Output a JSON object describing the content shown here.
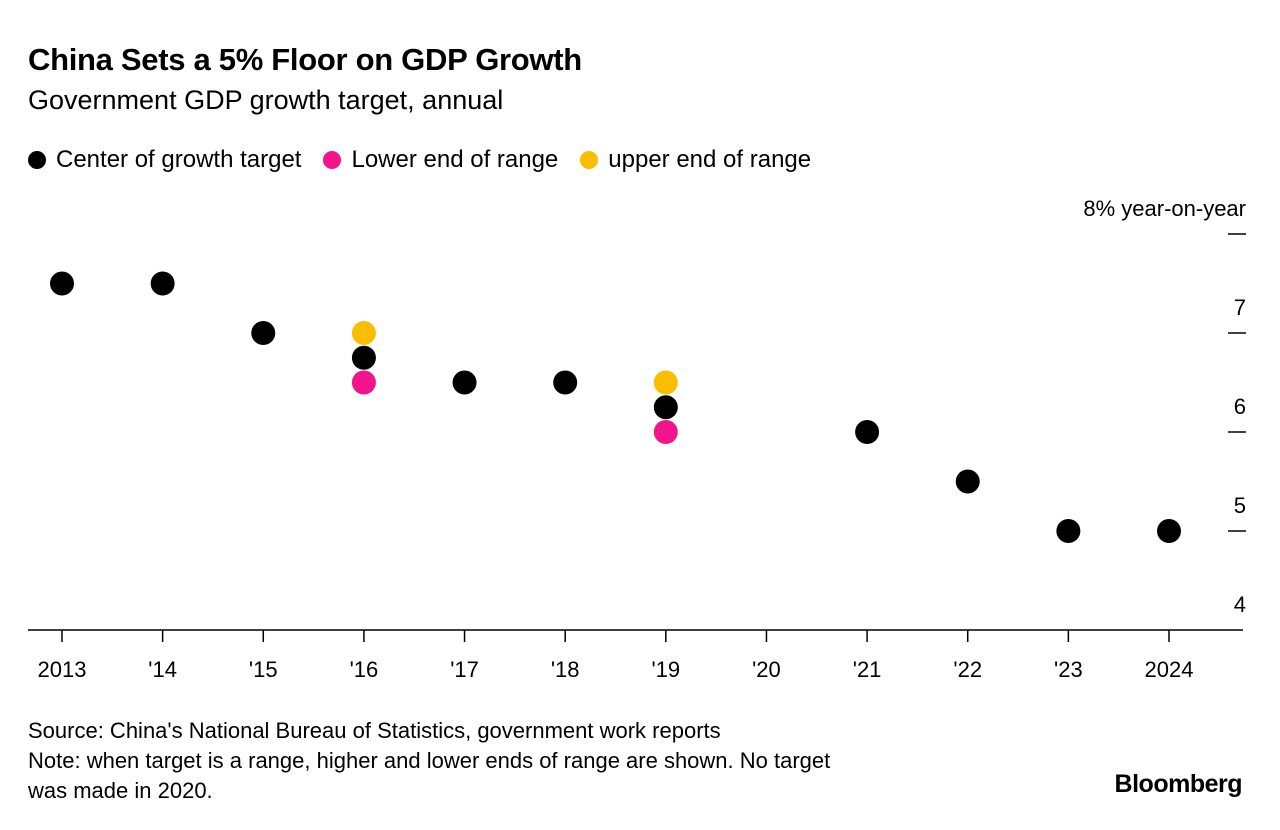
{
  "chart_data": {
    "type": "scatter",
    "title": "China Sets a 5% Floor on GDP Growth",
    "subtitle": "Government GDP growth target, annual",
    "xlabel": "",
    "ylabel": "8% year-on-year",
    "ylim": [
      4,
      8
    ],
    "yticks": [
      {
        "value": 8,
        "label": "8% year-on-year"
      },
      {
        "value": 7,
        "label": "7"
      },
      {
        "value": 6,
        "label": "6"
      },
      {
        "value": 5,
        "label": "5"
      },
      {
        "value": 4,
        "label": "4"
      }
    ],
    "x": [
      2013,
      2014,
      2015,
      2016,
      2017,
      2018,
      2019,
      2020,
      2021,
      2022,
      2023,
      2024
    ],
    "xtick_labels": [
      "2013",
      "'14",
      "'15",
      "'16",
      "'17",
      "'18",
      "'19",
      "'20",
      "'21",
      "'22",
      "'23",
      "2024"
    ],
    "series": [
      {
        "name": "Center of growth target",
        "color": "#000000",
        "points": [
          [
            2013,
            7.5
          ],
          [
            2014,
            7.5
          ],
          [
            2015,
            7.0
          ],
          [
            2016,
            6.75
          ],
          [
            2017,
            6.5
          ],
          [
            2018,
            6.5
          ],
          [
            2019,
            6.25
          ],
          [
            2021,
            6.0
          ],
          [
            2022,
            5.5
          ],
          [
            2023,
            5.0
          ],
          [
            2024,
            5.0
          ]
        ]
      },
      {
        "name": "Lower end of range",
        "color": "#f2148c",
        "points": [
          [
            2016,
            6.5
          ],
          [
            2019,
            6.0
          ]
        ]
      },
      {
        "name": "upper end of range",
        "color": "#fbbd00",
        "points": [
          [
            2016,
            7.0
          ],
          [
            2019,
            6.5
          ]
        ]
      }
    ],
    "grid": false,
    "legend": "top-left"
  },
  "footer": {
    "source": "Source: China's National Bureau of Statistics, government work reports",
    "note_line1": "Note: when target is a range, higher and lower ends of range are shown. No target",
    "note_line2": "was made in 2020.",
    "logo": "Bloomberg"
  }
}
